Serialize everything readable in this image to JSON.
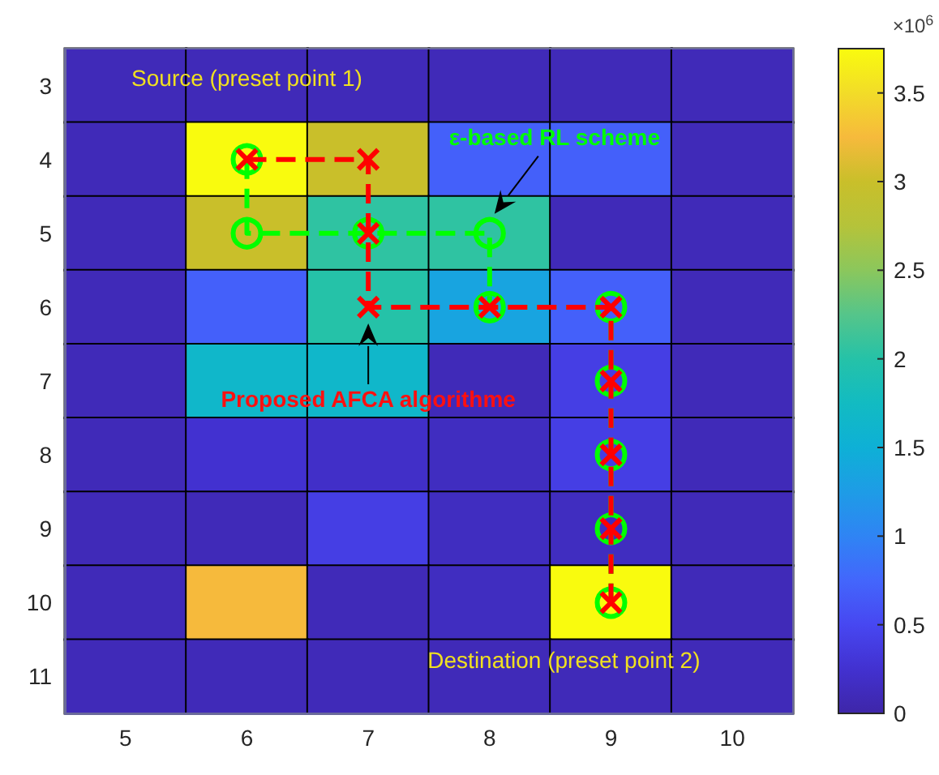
{
  "chart_data": [
    {
      "type": "heatmap",
      "categories": [
        "5",
        "6",
        "7",
        "8",
        "9",
        "10"
      ],
      "y_categories": [
        "3",
        "4",
        "5",
        "6",
        "7",
        "8",
        "9",
        "10",
        "11"
      ],
      "cells": [
        [
          0.1,
          0.1,
          0.1,
          0.1,
          0.1,
          0.1
        ],
        [
          0.1,
          3.75,
          3.0,
          0.7,
          0.7,
          0.1
        ],
        [
          0.1,
          3.0,
          2.05,
          2.05,
          0.1,
          0.1
        ],
        [
          0.1,
          0.7,
          2.0,
          1.35,
          0.7,
          0.1
        ],
        [
          0.1,
          1.65,
          1.65,
          0.1,
          0.4,
          0.1
        ],
        [
          0.1,
          0.25,
          0.2,
          0.15,
          0.4,
          0.1
        ],
        [
          0.1,
          0.1,
          0.4,
          0.15,
          0.15,
          0.1
        ],
        [
          0.1,
          3.25,
          0.1,
          0.15,
          3.75,
          0.1
        ],
        [
          0.1,
          0.1,
          0.1,
          0.1,
          0.1,
          0.1
        ]
      ],
      "clim": [
        0,
        3.75
      ],
      "cticks": [
        0,
        0.5,
        1,
        1.5,
        2,
        2.5,
        3,
        3.5
      ],
      "clabel": "×10$^{6}$",
      "tick_labels": false,
      "annotations": [
        "Source (preset point 1)",
        "ε-based RL scheme",
        "Proposed AFCA algorithme",
        "Destination (preset point 2)"
      ]
    },
    {
      "type": "line",
      "xlim": [
        4.5,
        10.5
      ],
      "ylim": [
        11.5,
        2.5
      ],
      "xticks": [
        5,
        6,
        7,
        8,
        9,
        10
      ],
      "yticks": [
        3,
        4,
        5,
        6,
        7,
        8,
        9,
        10,
        11
      ],
      "series": [
        {
          "color": "#00ff00",
          "marker": "circle",
          "line_style": "dashed",
          "x": [
            6,
            6,
            7,
            8,
            8,
            9,
            9,
            9,
            9,
            9
          ],
          "values": [
            4,
            5,
            5,
            5,
            6,
            6,
            7,
            8,
            9,
            10
          ]
        },
        {
          "color": "#ff0000",
          "marker": "cross",
          "line_style": "dashed",
          "x": [
            6,
            7,
            7,
            7,
            8,
            9,
            9,
            9,
            9,
            9
          ],
          "values": [
            4,
            4,
            5,
            6,
            6,
            6,
            7,
            8,
            9,
            10
          ]
        }
      ]
    }
  ]
}
